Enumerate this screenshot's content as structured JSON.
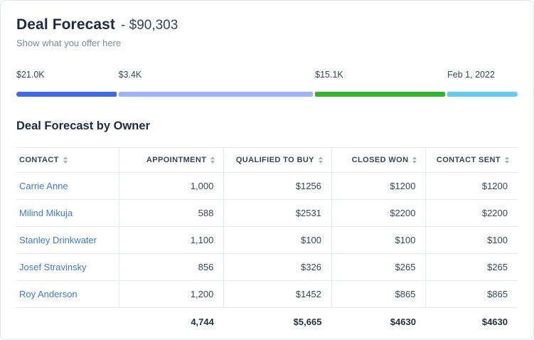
{
  "header": {
    "title": "Deal Forecast",
    "amount": "- $90,303",
    "subtitle": "Show what you offer here"
  },
  "funnel": {
    "segments": [
      {
        "label": "$21.0K",
        "color": "#3c6bf0",
        "width_pct": 20.2
      },
      {
        "label": "$3.4K",
        "color": "#9cb5f8",
        "width_pct": 39.3
      },
      {
        "label": "$15.1K",
        "color": "#30b72f",
        "width_pct": 26.3
      },
      {
        "label": "Feb 1, 2022",
        "color": "#64cdf7",
        "width_pct": 14.2
      }
    ]
  },
  "colors": {
    "link": "#4177d2"
  },
  "table": {
    "title": "Deal Forecast by Owner",
    "columns": [
      "CONTACT",
      "APPOINTMENT",
      "QUALIFIED TO BUY",
      "CLOSED WON",
      "CONTACT SENT"
    ],
    "rows": [
      [
        "Carrie Anne",
        "1,000",
        "$1256",
        "$1200",
        "$1200"
      ],
      [
        "Milind Mikuja",
        "588",
        "$2531",
        "$2200",
        "$2200"
      ],
      [
        "Stanley Drinkwater",
        "1,100",
        "$100",
        "$100",
        "$100"
      ],
      [
        "Josef Stravinsky",
        "856",
        "$326",
        "$265",
        "$265"
      ],
      [
        "Roy Anderson",
        "1,200",
        "$1452",
        "$865",
        "$865"
      ]
    ],
    "totals": [
      "",
      "4,744",
      "$5,665",
      "$4630",
      "$4630"
    ]
  }
}
